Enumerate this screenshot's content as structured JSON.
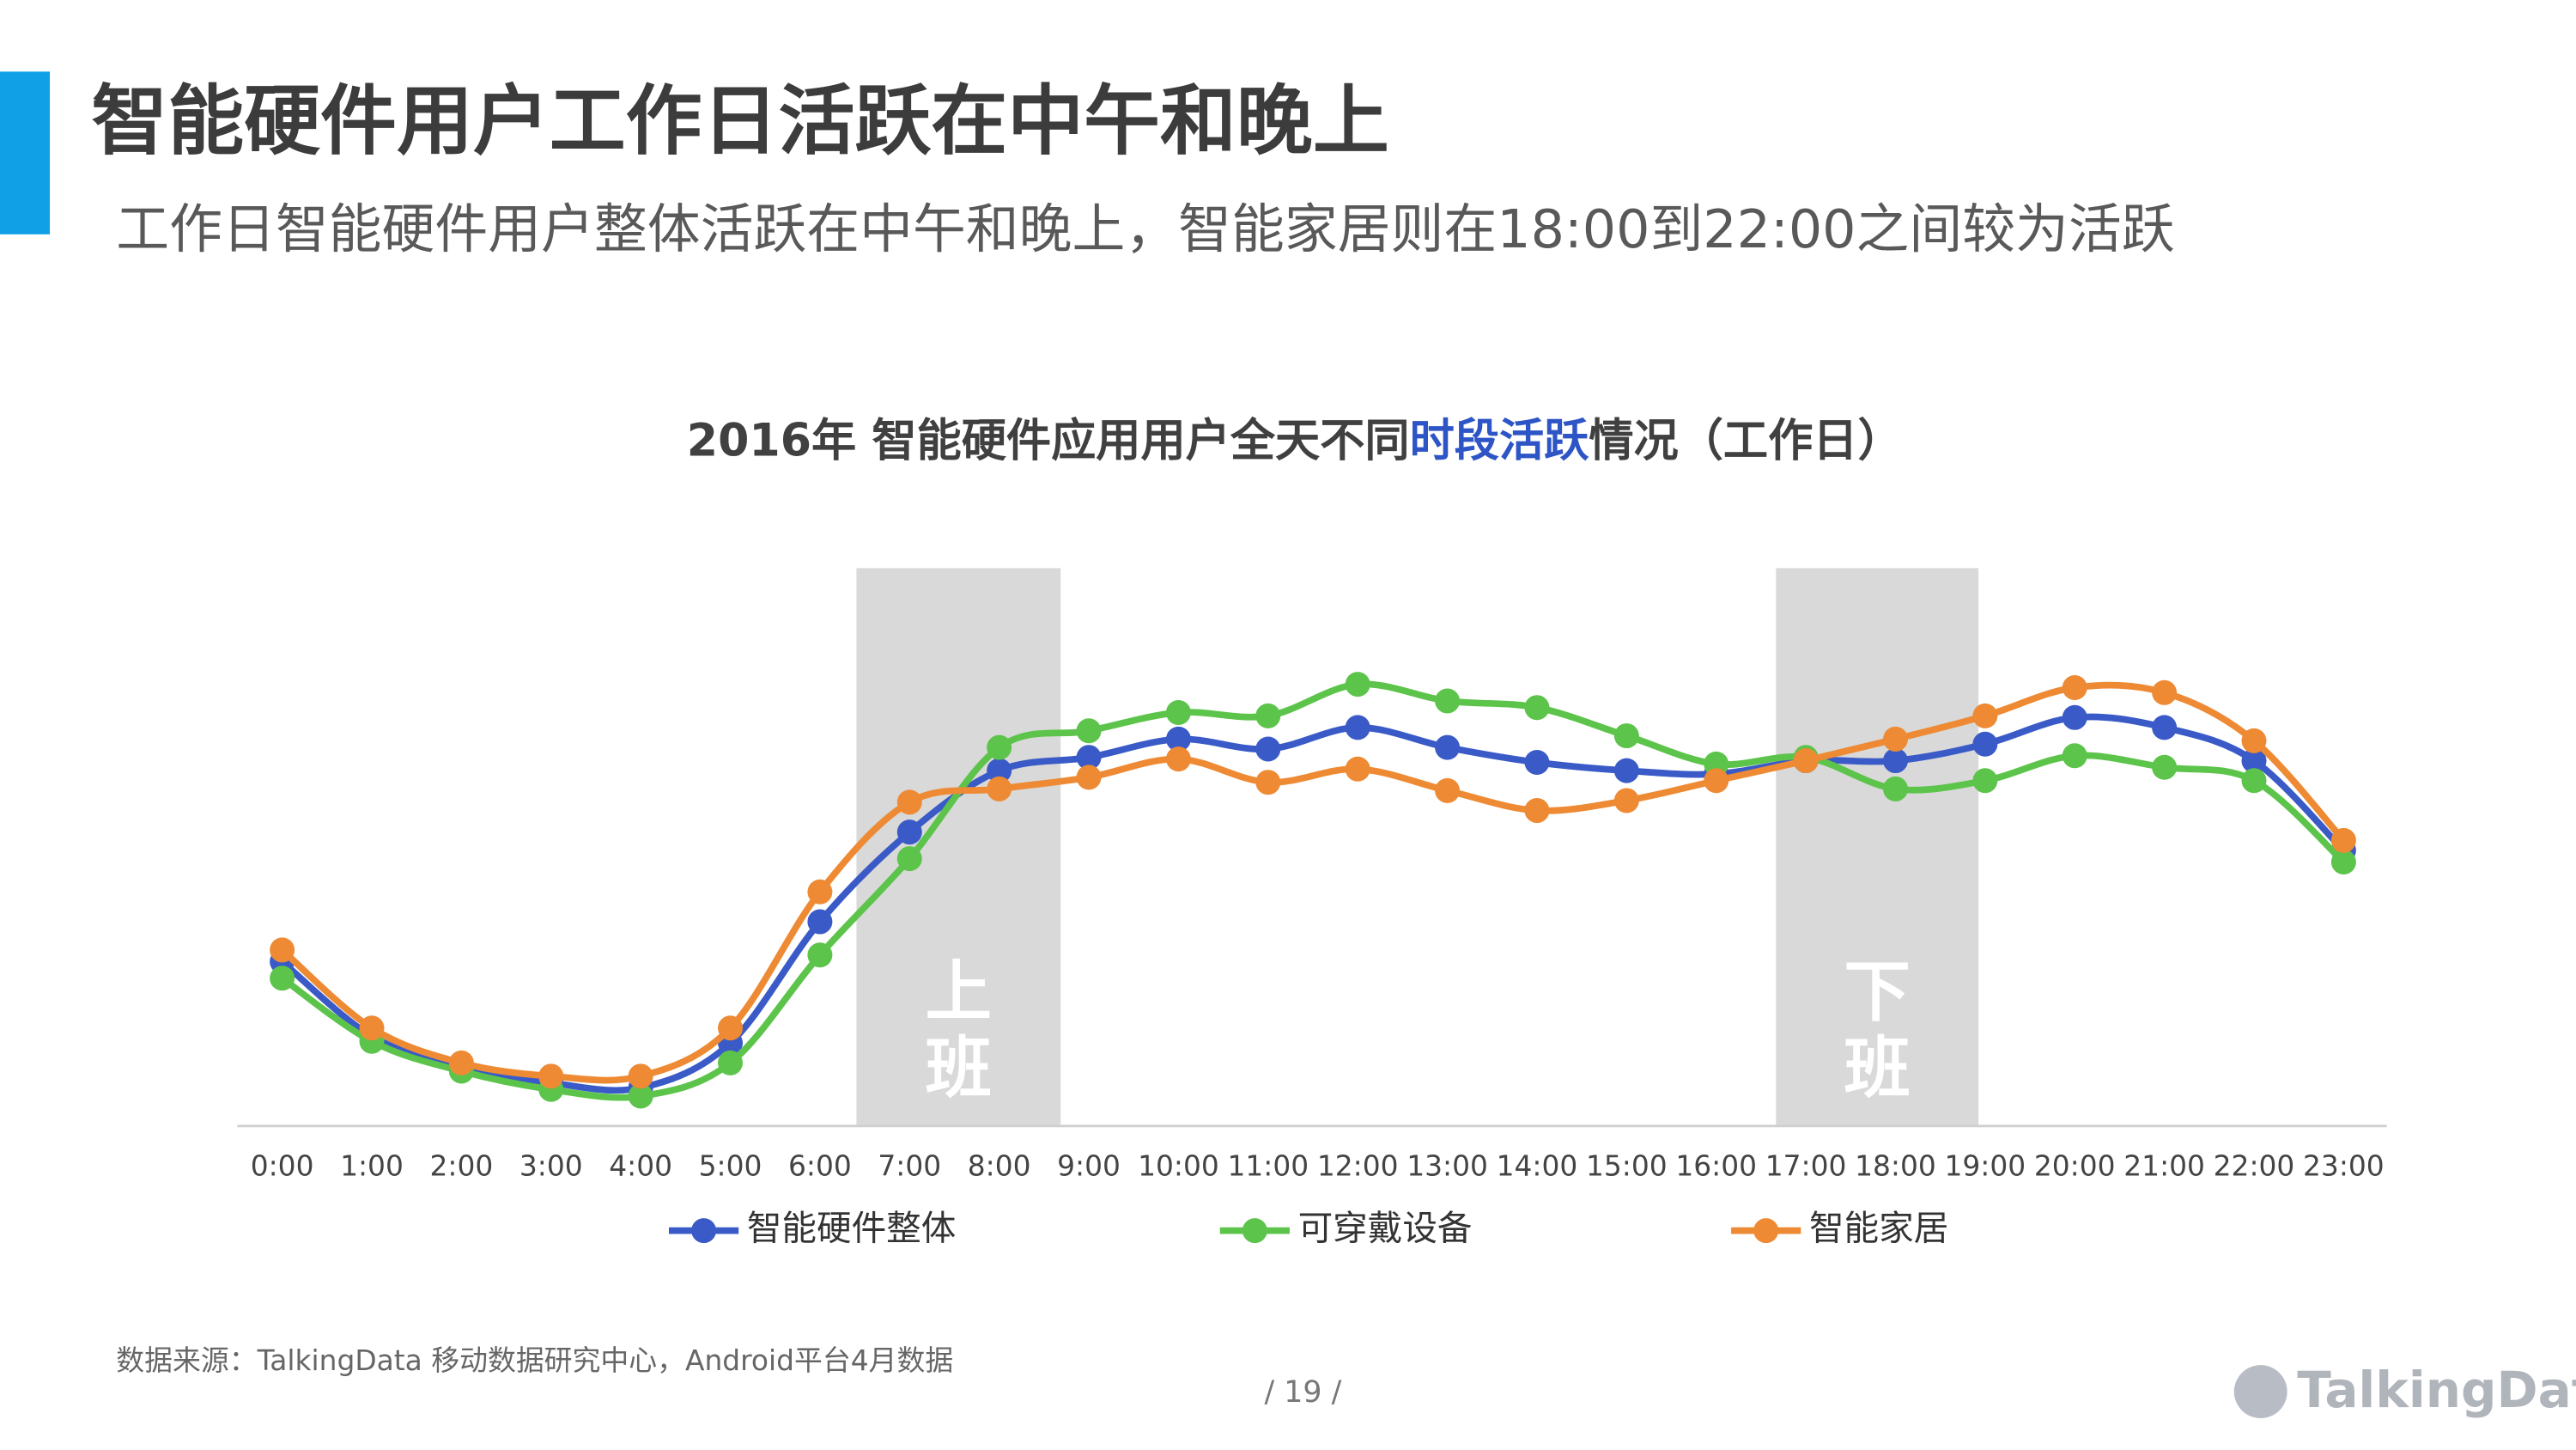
{
  "header": {
    "title": "智能硬件用户工作日活跃在中午和晚上",
    "subtitle": "工作日智能硬件用户整体活跃在中午和晚上，智能家居则在18:00到22:00之间较为活跃"
  },
  "chart_data": {
    "type": "line",
    "title": [
      "2016年 智能硬件应用用户全天不同",
      "时段活跃",
      "情况（工作日）"
    ],
    "title_colors": [
      "#404040",
      "#2e55c6",
      "#404040"
    ],
    "categories": [
      "0:00",
      "1:00",
      "2:00",
      "3:00",
      "4:00",
      "5:00",
      "6:00",
      "7:00",
      "8:00",
      "9:00",
      "10:00",
      "11:00",
      "12:00",
      "13:00",
      "14:00",
      "15:00",
      "16:00",
      "17:00",
      "18:00",
      "19:00",
      "20:00",
      "21:00",
      "22:00",
      "23:00"
    ],
    "series": [
      {
        "name": "智能硬件整体",
        "color": "#3a5bc7",
        "values": [
          99,
          54,
          36,
          26,
          23,
          50,
          123,
          177,
          214,
          222,
          233,
          227,
          240,
          228,
          219,
          214,
          212,
          220,
          220,
          230,
          246,
          240,
          220,
          166
        ]
      },
      {
        "name": "可穿戴设备",
        "color": "#5cc44a",
        "values": [
          89,
          51,
          33,
          22,
          18,
          38,
          103,
          161,
          228,
          238,
          249,
          247,
          266,
          256,
          252,
          235,
          218,
          222,
          203,
          208,
          223,
          216,
          208,
          159
        ]
      },
      {
        "name": "智能家居",
        "color": "#ee8a33",
        "values": [
          106,
          59,
          38,
          30,
          30,
          59,
          141,
          195,
          203,
          210,
          221,
          207,
          215,
          202,
          190,
          196,
          208,
          220,
          233,
          247,
          264,
          261,
          232,
          172
        ]
      }
    ],
    "ylim": [
      0,
      300
    ],
    "annotations": [
      "上班",
      "下班"
    ],
    "legend": "bottom"
  },
  "footer": {
    "source": "数据来源：TalkingData 移动数据研究中心，Android平台4月数据",
    "page": "/  19  /",
    "logo": "TalkingData"
  }
}
